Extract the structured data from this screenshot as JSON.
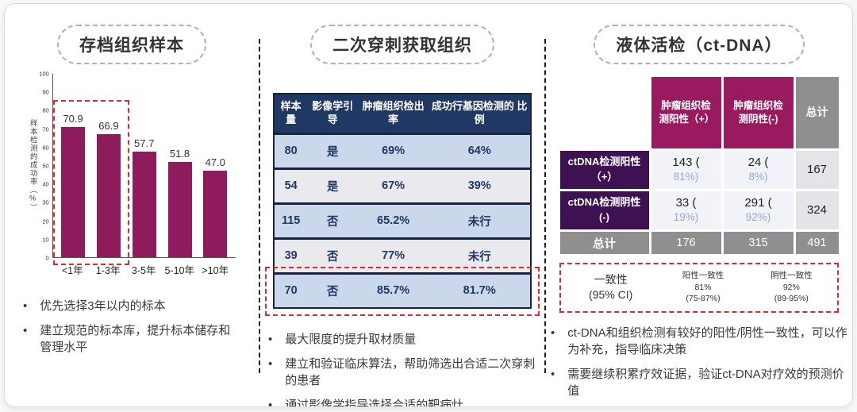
{
  "colors": {
    "bar": "#8E1B5B",
    "midHead": "#203864",
    "tblBorder": "#17233F",
    "rowBlue": "#CBD8EC",
    "rowGray": "#EAEAEE",
    "magenta": "#9A1A60",
    "purple": "#3D1152",
    "gray": "#8F8F8F",
    "cellLight": "#F2F3F8",
    "cellGray": "#E4E4E8",
    "pctBlue": "#8FAADC",
    "red": "#DE2A2E"
  },
  "chart_data": [
    {
      "type": "bar",
      "title": "存档组织样本",
      "categories": [
        "<1年",
        "1-3年",
        "3-5年",
        "5-10年",
        ">10年"
      ],
      "values": [
        70.9,
        66.9,
        57.7,
        51.8,
        47.0
      ],
      "value_labels": [
        "70.9",
        "66.9",
        "57.7",
        "51.8",
        "47.0"
      ],
      "xlabel": "",
      "ylabel": "样本检测的成功率（%）",
      "ylim": [
        0,
        100
      ],
      "yticks": [
        0,
        10,
        20,
        30,
        40,
        50,
        60,
        70,
        80,
        90,
        100
      ],
      "grid": false,
      "legend": "none",
      "bar_color": "#8E1B5B",
      "annotation": "前两根柱（<1年、1-3年）被红色虚线框标出"
    },
    {
      "type": "table",
      "title": "二次穿刺获取组织",
      "columns": [
        "样本量",
        "影像学引导",
        "肿瘤组织检出率",
        "成功行基因检测的 比例"
      ],
      "rows": [
        [
          "80",
          "是",
          "69%",
          "64%"
        ],
        [
          "54",
          "是",
          "67%",
          "39%"
        ],
        [
          "115",
          "否",
          "65.2%",
          "未行"
        ],
        [
          "39",
          "否",
          "77%",
          "未行"
        ],
        [
          "70",
          "否",
          "85.7%",
          "81.7%"
        ]
      ],
      "highlighted_row_index": 4,
      "annotation": "最后一行（70 / 否 / 85.7% / 81.7%）被红色虚线框标出"
    },
    {
      "type": "table",
      "title": "液体活检（ct-DNA）",
      "columns": [
        "",
        "肿瘤组织检测阳性（+）",
        "肿瘤组织检测阴性(-)",
        "总计"
      ],
      "rows": [
        [
          "ctDNA检测阳性（+）",
          "143 (81%)",
          "24 (8%)",
          "167"
        ],
        [
          "ctDNA检测阴性(-)",
          "33 (19%)",
          "291 (92%)",
          "324"
        ],
        [
          "总计",
          "176",
          "315",
          "491"
        ]
      ],
      "consistency": {
        "label_top": "一致性",
        "label_bottom": "(95% CI)",
        "items": [
          {
            "name": "阳性一致性",
            "value": "81%",
            "ci": "(75-87%)"
          },
          {
            "name": "阴性一致性",
            "value": "92%",
            "ci": "(89-95%)"
          }
        ]
      }
    }
  ],
  "panels": {
    "left": {
      "bullets": [
        "优先选择3年以内的标本",
        "建立规范的标本库，提升标本储存和管理水平"
      ]
    },
    "middle": {
      "bullets": [
        "最大限度的提升取材质量",
        "建立和验证临床算法，帮助筛选出合适二次穿刺的患者",
        "通过影像学指导选择合适的靶病灶"
      ]
    },
    "right": {
      "bullets": [
        "ct-DNA和组织检测有较好的阳性/阴性一致性，可以作为补充，指导临床决策",
        "需要继续积累疗效证据，验证ct-DNA对疗效的预测价值"
      ]
    }
  },
  "bullet_glyph": "•"
}
